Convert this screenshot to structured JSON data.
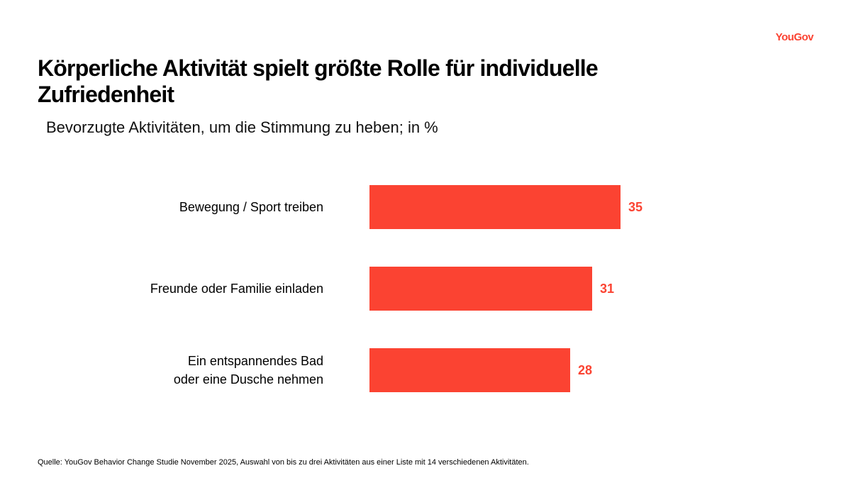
{
  "logo": {
    "text": "YouGov"
  },
  "header": {
    "title": "Körperliche Aktivität spielt größte Rolle für individuelle\nZufriedenheit",
    "subtitle": "Bevorzugte Aktivitäten, um die Stimmung zu heben; in %"
  },
  "chart_data": {
    "type": "bar",
    "orientation": "horizontal",
    "title": "Körperliche Aktivität spielt größte Rolle für individuelle Zufriedenheit",
    "subtitle": "Bevorzugte Aktivitäten, um die Stimmung zu heben; in %",
    "categories": [
      "Bewegung / Sport treiben",
      "Freunde oder Familie einladen",
      "Ein entspannendes Bad\noder eine Dusche nehmen"
    ],
    "values": [
      35,
      31,
      28
    ],
    "value_labels": [
      "35",
      "31",
      "28"
    ],
    "xlim": [
      0,
      35
    ],
    "grid": false,
    "legend": false,
    "bar_color": "#FB4332",
    "value_label_color": "#FB4332"
  },
  "footer": {
    "source": "Quelle: YouGov Behavior Change Studie November 2025, Auswahl von bis zu drei Aktivitäten aus einer Liste mit 14 verschiedenen Aktivitäten."
  }
}
